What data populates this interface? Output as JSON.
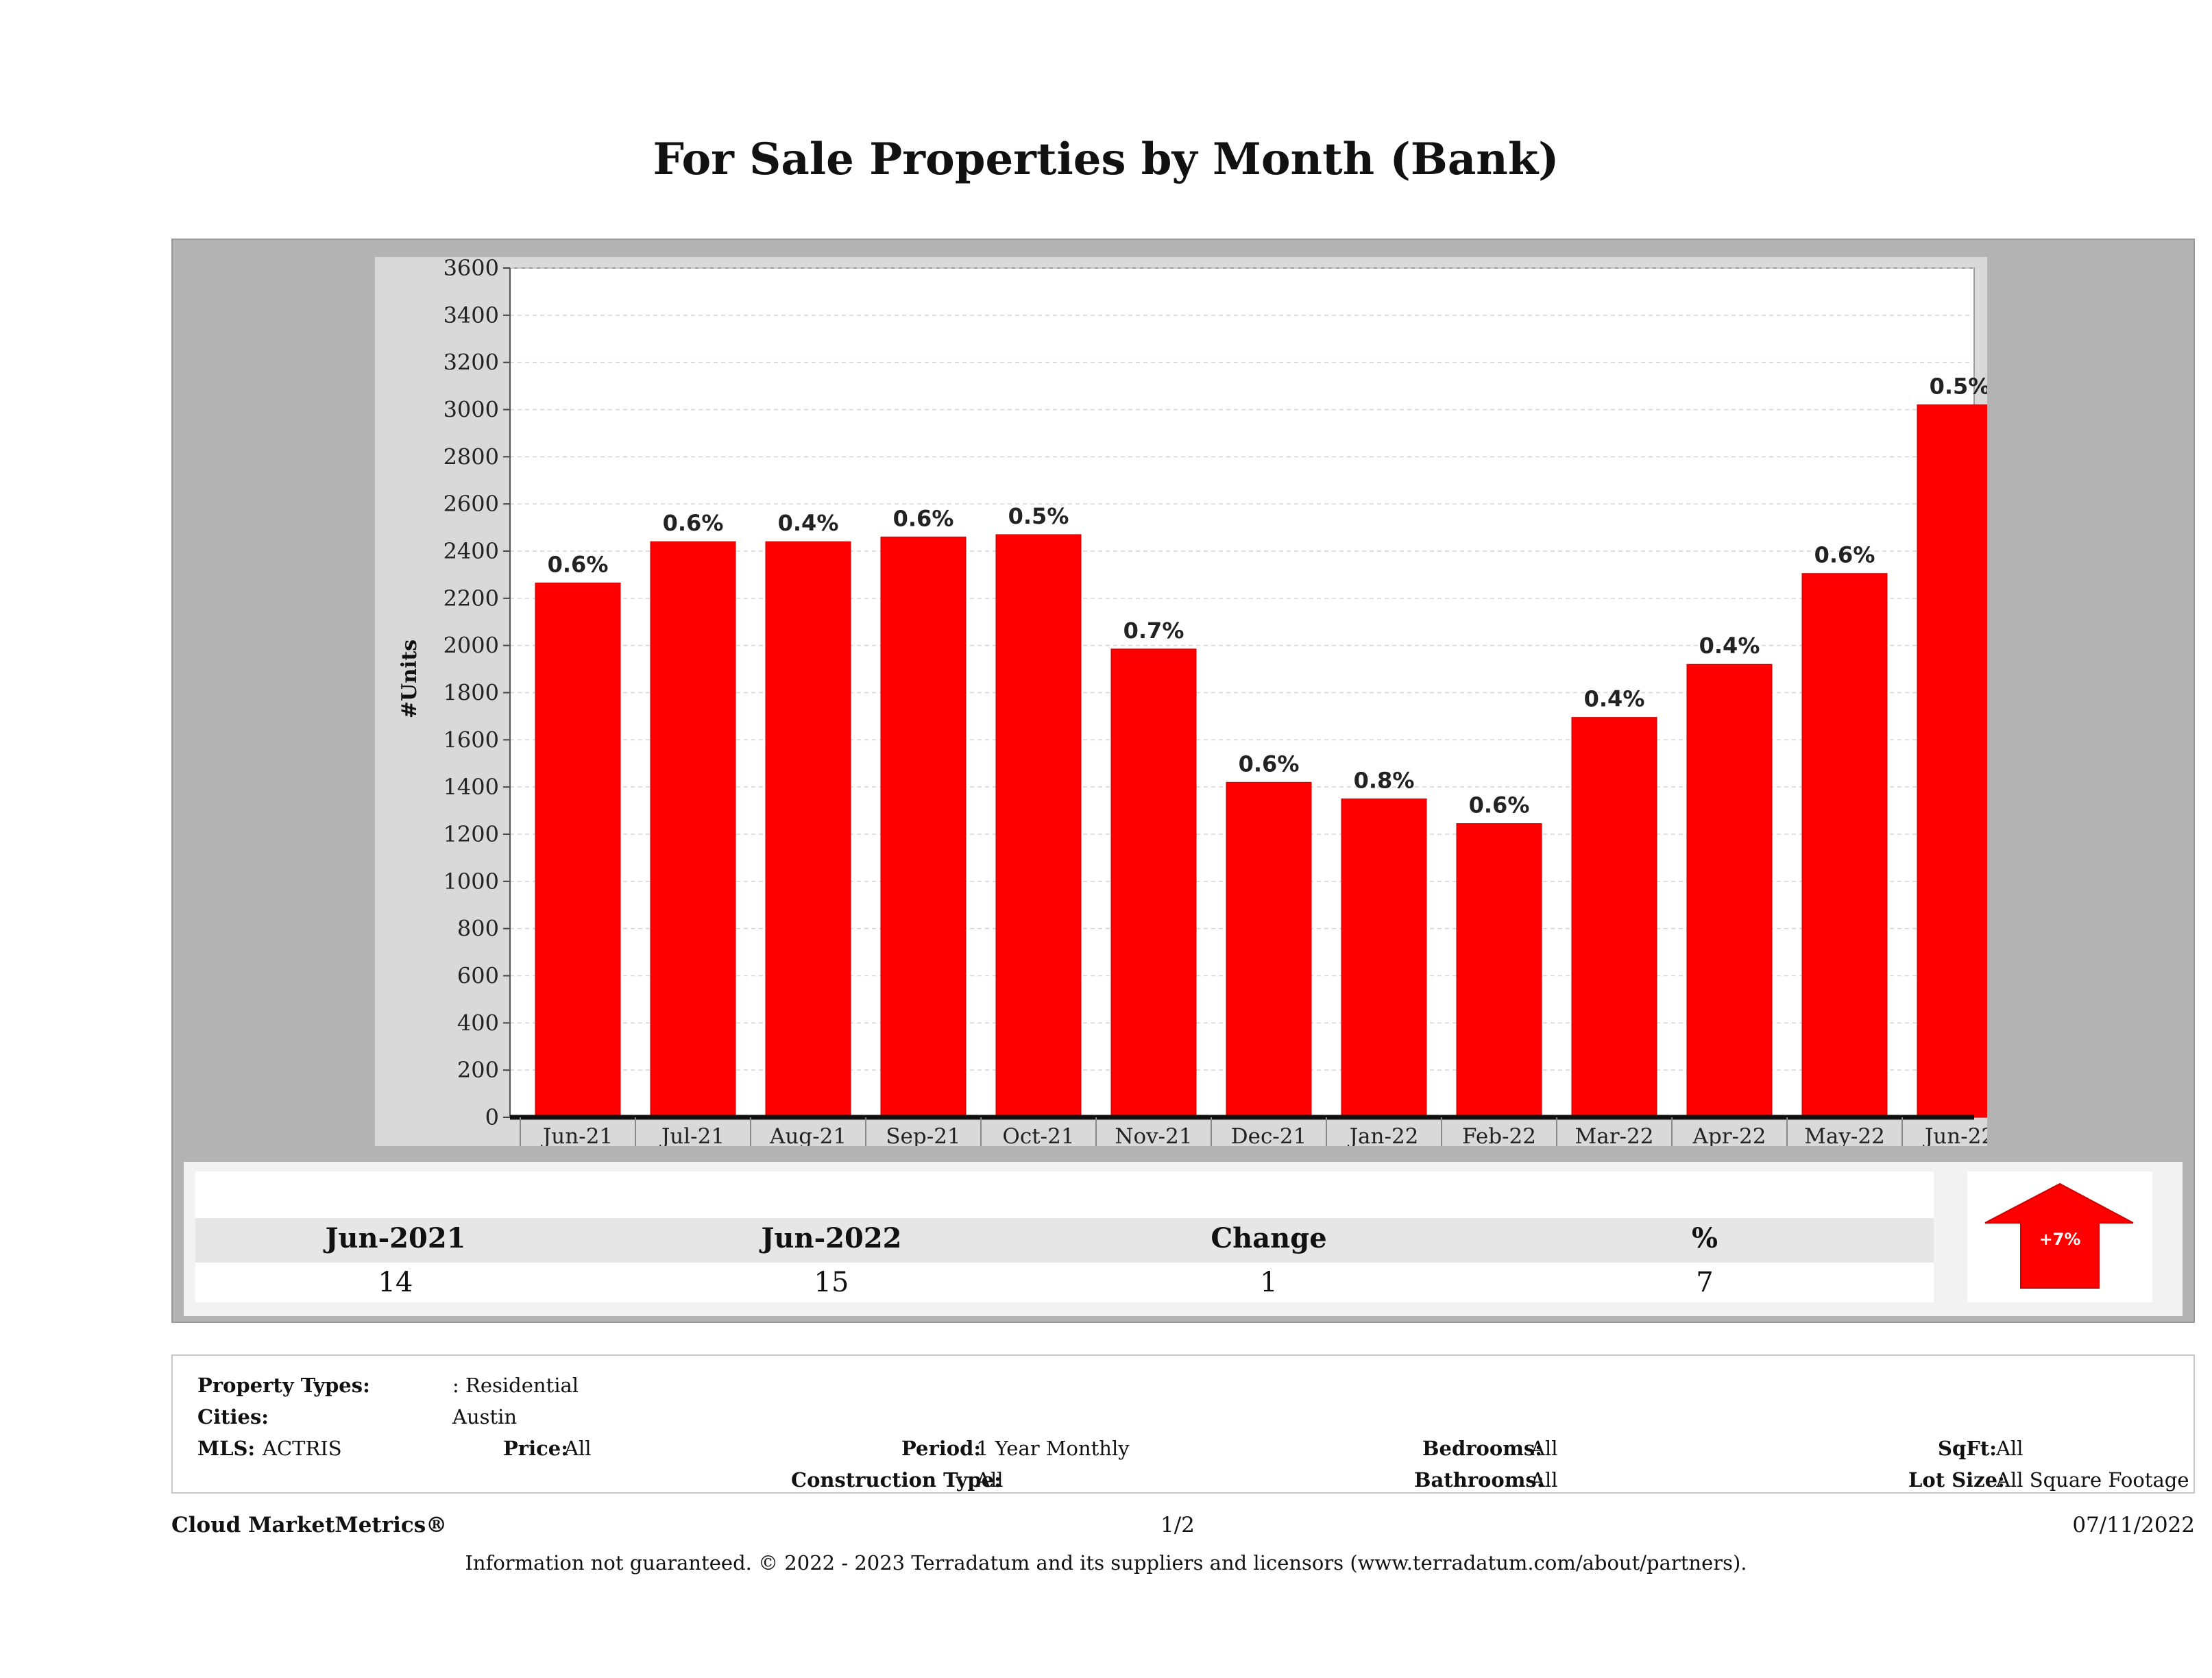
{
  "title": "For Sale Properties by Month (Bank)",
  "chart_data": {
    "type": "bar",
    "ylabel": "#Units",
    "ylim": [
      0,
      3600
    ],
    "ytick_step": 200,
    "grid": true,
    "bar_color": "#ff0000",
    "categories": [
      "Jun-21",
      "Jul-21",
      "Aug-21",
      "Sep-21",
      "Oct-21",
      "Nov-21",
      "Dec-21",
      "Jan-22",
      "Feb-22",
      "Mar-22",
      "Apr-22",
      "May-22",
      "Jun-22"
    ],
    "values": [
      2265,
      2440,
      2440,
      2460,
      2470,
      1985,
      1420,
      1350,
      1245,
      1695,
      1920,
      2305,
      3020
    ],
    "data_labels": [
      "0.6%",
      "0.6%",
      "0.4%",
      "0.6%",
      "0.5%",
      "0.7%",
      "0.6%",
      "0.8%",
      "0.6%",
      "0.4%",
      "0.4%",
      "0.6%",
      "0.5%"
    ]
  },
  "summary": {
    "headers": [
      "Jun-2021",
      "Jun-2022",
      "Change",
      "%"
    ],
    "values": [
      "14",
      "15",
      "1",
      "7"
    ],
    "trend_label": "+7%",
    "trend_color": "#ff0000"
  },
  "filters": {
    "property_types_label": "Property Types:",
    "property_types_value": ": Residential",
    "cities_label": "Cities:",
    "cities_value": "Austin",
    "mls_label": "MLS:",
    "mls_value": "ACTRIS",
    "price_label": "Price:",
    "price_value": "All",
    "period_label": "Period:",
    "period_value": "1 Year Monthly",
    "construction_label": "Construction Type:",
    "construction_value": "All",
    "bedrooms_label": "Bedrooms:",
    "bedrooms_value": "All",
    "bathrooms_label": "Bathrooms:",
    "bathrooms_value": "All",
    "sqft_label": "SqFt:",
    "sqft_value": "All",
    "lotsize_label": "Lot Size:",
    "lotsize_value": "All Square Footage"
  },
  "footer": {
    "brand": "Cloud MarketMetrics®",
    "page": "1/2",
    "date": "07/11/2022",
    "disclaimer": "Information not guaranteed. © 2022 - 2023 Terradatum and its suppliers and licensors (www.terradatum.com/about/partners)."
  }
}
